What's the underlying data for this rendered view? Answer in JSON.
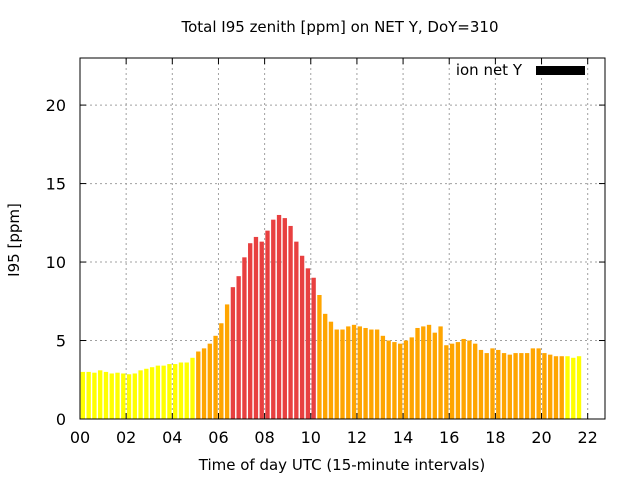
{
  "chart_data": {
    "type": "bar",
    "title": "Total I95 zenith [ppm] on NET Y, DoY=310",
    "xlabel": "Time of day UTC (15-minute intervals)",
    "ylabel": "I95 [ppm]",
    "legend": {
      "label": "ion net Y",
      "color": "#000000",
      "placement": "top-right"
    },
    "ylim": [
      0,
      23
    ],
    "yticks": [
      0,
      5,
      10,
      15,
      20
    ],
    "xlim_hours": [
      0,
      22.75
    ],
    "xticks": [
      {
        "hour": 0,
        "label": "00"
      },
      {
        "hour": 2,
        "label": "02"
      },
      {
        "hour": 4,
        "label": "04"
      },
      {
        "hour": 6,
        "label": "06"
      },
      {
        "hour": 8,
        "label": "08"
      },
      {
        "hour": 10,
        "label": "10"
      },
      {
        "hour": 12,
        "label": "12"
      },
      {
        "hour": 14,
        "label": "14"
      },
      {
        "hour": 16,
        "label": "16"
      },
      {
        "hour": 18,
        "label": "18"
      },
      {
        "hour": 20,
        "label": "20"
      },
      {
        "hour": 22,
        "label": "22"
      }
    ],
    "interval_minutes": 15,
    "colors": {
      "yellow": "#ffff00",
      "orange": "#ffa500",
      "red": "#e84040"
    },
    "values": [
      3.0,
      3.0,
      2.95,
      3.1,
      3.0,
      2.9,
      2.95,
      2.9,
      2.85,
      2.9,
      3.1,
      3.2,
      3.3,
      3.4,
      3.4,
      3.5,
      3.5,
      3.6,
      3.6,
      3.9,
      4.3,
      4.5,
      4.8,
      5.3,
      6.1,
      7.3,
      8.4,
      9.1,
      10.3,
      11.2,
      11.6,
      11.3,
      12.0,
      12.7,
      13.0,
      12.8,
      12.3,
      11.3,
      10.4,
      9.6,
      9.0,
      7.9,
      6.7,
      6.2,
      5.7,
      5.7,
      5.9,
      6.0,
      5.9,
      5.8,
      5.7,
      5.7,
      5.3,
      5.0,
      4.9,
      4.8,
      5.0,
      5.2,
      5.8,
      5.9,
      6.0,
      5.5,
      5.9,
      4.7,
      4.8,
      4.9,
      5.1,
      5.0,
      4.8,
      4.4,
      4.2,
      4.5,
      4.4,
      4.2,
      4.1,
      4.2,
      4.2,
      4.2,
      4.5,
      4.5,
      4.2,
      4.1,
      4.0,
      4.0,
      4.0,
      3.9,
      4.0
    ],
    "levels": [
      "yellow",
      "yellow",
      "yellow",
      "yellow",
      "yellow",
      "yellow",
      "yellow",
      "yellow",
      "yellow",
      "yellow",
      "yellow",
      "yellow",
      "yellow",
      "yellow",
      "yellow",
      "yellow",
      "yellow",
      "yellow",
      "yellow",
      "yellow",
      "orange",
      "orange",
      "orange",
      "orange",
      "orange",
      "orange",
      "red",
      "red",
      "red",
      "red",
      "red",
      "red",
      "red",
      "red",
      "red",
      "red",
      "red",
      "red",
      "red",
      "red",
      "red",
      "orange",
      "orange",
      "orange",
      "orange",
      "orange",
      "orange",
      "orange",
      "orange",
      "orange",
      "orange",
      "orange",
      "orange",
      "orange",
      "orange",
      "orange",
      "orange",
      "orange",
      "orange",
      "orange",
      "orange",
      "orange",
      "orange",
      "orange",
      "orange",
      "orange",
      "orange",
      "orange",
      "orange",
      "orange",
      "orange",
      "orange",
      "orange",
      "orange",
      "orange",
      "orange",
      "orange",
      "orange",
      "orange",
      "orange",
      "orange",
      "orange",
      "orange",
      "orange",
      "yellow",
      "yellow",
      "yellow",
      "orange"
    ]
  }
}
